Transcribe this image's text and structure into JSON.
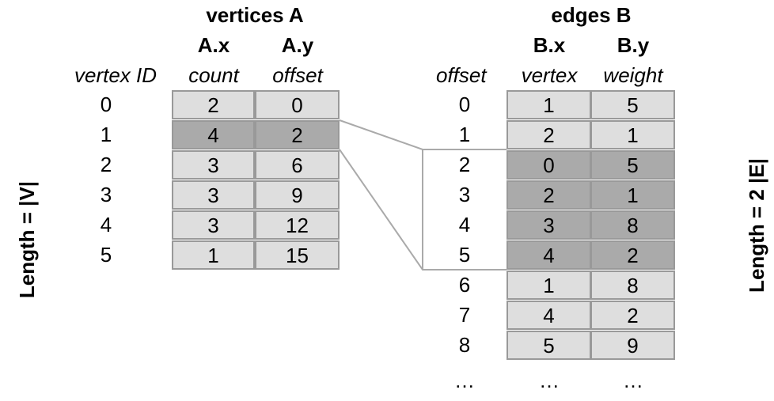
{
  "vertices": {
    "title": "vertices A",
    "col_x_header": "A.x",
    "col_y_header": "A.y",
    "id_label": "vertex ID",
    "col_x_label": "count",
    "col_y_label": "offset",
    "rows": [
      {
        "id": "0",
        "count": "2",
        "offset": "0",
        "highlight": false
      },
      {
        "id": "1",
        "count": "4",
        "offset": "2",
        "highlight": true
      },
      {
        "id": "2",
        "count": "3",
        "offset": "6",
        "highlight": false
      },
      {
        "id": "3",
        "count": "3",
        "offset": "9",
        "highlight": false
      },
      {
        "id": "4",
        "count": "3",
        "offset": "12",
        "highlight": false
      },
      {
        "id": "5",
        "count": "1",
        "offset": "15",
        "highlight": false
      }
    ],
    "length_label": "Length = |V|"
  },
  "edges": {
    "title": "edges B",
    "col_x_header": "B.x",
    "col_y_header": "B.y",
    "offset_label": "offset",
    "col_x_label": "vertex",
    "col_y_label": "weight",
    "rows": [
      {
        "offset": "0",
        "vertex": "1",
        "weight": "5",
        "highlight": false
      },
      {
        "offset": "1",
        "vertex": "2",
        "weight": "1",
        "highlight": false
      },
      {
        "offset": "2",
        "vertex": "0",
        "weight": "5",
        "highlight": true
      },
      {
        "offset": "3",
        "vertex": "2",
        "weight": "1",
        "highlight": true
      },
      {
        "offset": "4",
        "vertex": "3",
        "weight": "8",
        "highlight": true
      },
      {
        "offset": "5",
        "vertex": "4",
        "weight": "2",
        "highlight": true
      },
      {
        "offset": "6",
        "vertex": "1",
        "weight": "8",
        "highlight": false
      },
      {
        "offset": "7",
        "vertex": "4",
        "weight": "2",
        "highlight": false
      },
      {
        "offset": "8",
        "vertex": "5",
        "weight": "9",
        "highlight": false
      }
    ],
    "ellipsis": "…",
    "length_label": "Length = 2 |E|"
  },
  "colors": {
    "cell": "#dedede",
    "cell_highlight": "#aaaaaa",
    "border": "#999999",
    "connector": "#aaaaaa"
  }
}
